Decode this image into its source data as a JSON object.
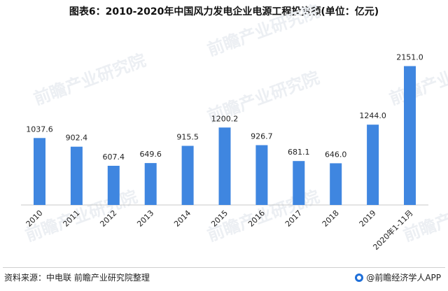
{
  "title": "图表6：2010-2020年中国风力发电企业电源工程投资额(单位：亿元)",
  "watermark": "前瞻产业研究院",
  "source": "资料来源：中电联 前瞻产业研究院整理",
  "brand": "@前瞻经济学人APP",
  "colors": {
    "bar": "#3f86e0",
    "axis": "#c9c9c9",
    "watermark": "#eceff3"
  },
  "chart_data": {
    "type": "bar",
    "categories": [
      "2010",
      "2011",
      "2012",
      "2013",
      "2014",
      "2015",
      "2016",
      "2017",
      "2018",
      "2019",
      "2020年1-11月"
    ],
    "values": [
      1037.6,
      902.4,
      607.4,
      649.6,
      915.5,
      1200.2,
      926.7,
      681.1,
      646.0,
      1244.0,
      2151.0
    ],
    "value_labels": [
      "1037.6",
      "902.4",
      "607.4",
      "649.6",
      "915.5",
      "1200.2",
      "926.7",
      "681.1",
      "646.0",
      "1244.0",
      "2151.0"
    ],
    "ylim": [
      0,
      2200
    ],
    "grid": false,
    "legend": "none"
  }
}
